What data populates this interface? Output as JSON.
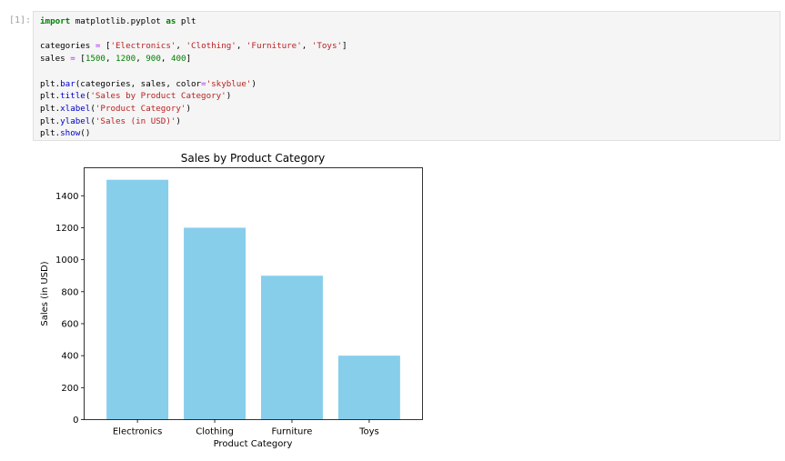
{
  "cell": {
    "prompt": "[1]:",
    "code_lines": [
      [
        {
          "t": "import",
          "c": "kw"
        },
        {
          "t": " matplotlib.pyplot ",
          "c": ""
        },
        {
          "t": "as",
          "c": "kw"
        },
        {
          "t": " plt",
          "c": ""
        }
      ],
      [],
      [
        {
          "t": "categories ",
          "c": ""
        },
        {
          "t": "=",
          "c": "op"
        },
        {
          "t": " [",
          "c": ""
        },
        {
          "t": "'Electronics'",
          "c": "str"
        },
        {
          "t": ", ",
          "c": ""
        },
        {
          "t": "'Clothing'",
          "c": "str"
        },
        {
          "t": ", ",
          "c": ""
        },
        {
          "t": "'Furniture'",
          "c": "str"
        },
        {
          "t": ", ",
          "c": ""
        },
        {
          "t": "'Toys'",
          "c": "str"
        },
        {
          "t": "]",
          "c": ""
        }
      ],
      [
        {
          "t": "sales ",
          "c": ""
        },
        {
          "t": "=",
          "c": "op"
        },
        {
          "t": " [",
          "c": ""
        },
        {
          "t": "1500",
          "c": "num"
        },
        {
          "t": ", ",
          "c": ""
        },
        {
          "t": "1200",
          "c": "num"
        },
        {
          "t": ", ",
          "c": ""
        },
        {
          "t": "900",
          "c": "num"
        },
        {
          "t": ", ",
          "c": ""
        },
        {
          "t": "400",
          "c": "num"
        },
        {
          "t": "]",
          "c": ""
        }
      ],
      [],
      [
        {
          "t": "plt.",
          "c": ""
        },
        {
          "t": "bar",
          "c": "fn"
        },
        {
          "t": "(categories, sales, color",
          "c": ""
        },
        {
          "t": "=",
          "c": "op"
        },
        {
          "t": "'skyblue'",
          "c": "str"
        },
        {
          "t": ")",
          "c": ""
        }
      ],
      [
        {
          "t": "plt.",
          "c": ""
        },
        {
          "t": "title",
          "c": "fn"
        },
        {
          "t": "(",
          "c": ""
        },
        {
          "t": "'Sales by Product Category'",
          "c": "str"
        },
        {
          "t": ")",
          "c": ""
        }
      ],
      [
        {
          "t": "plt.",
          "c": ""
        },
        {
          "t": "xlabel",
          "c": "fn"
        },
        {
          "t": "(",
          "c": ""
        },
        {
          "t": "'Product Category'",
          "c": "str"
        },
        {
          "t": ")",
          "c": ""
        }
      ],
      [
        {
          "t": "plt.",
          "c": ""
        },
        {
          "t": "ylabel",
          "c": "fn"
        },
        {
          "t": "(",
          "c": ""
        },
        {
          "t": "'Sales (in USD)'",
          "c": "str"
        },
        {
          "t": ")",
          "c": ""
        }
      ],
      [
        {
          "t": "plt.",
          "c": ""
        },
        {
          "t": "show",
          "c": "fn"
        },
        {
          "t": "()",
          "c": ""
        }
      ]
    ]
  },
  "chart_data": {
    "type": "bar",
    "title": "Sales by Product Category",
    "xlabel": "Product Category",
    "ylabel": "Sales (in USD)",
    "categories": [
      "Electronics",
      "Clothing",
      "Furniture",
      "Toys"
    ],
    "values": [
      1500,
      1200,
      900,
      400
    ],
    "ylim": [
      0,
      1575
    ],
    "yticks": [
      0,
      200,
      400,
      600,
      800,
      1000,
      1200,
      1400
    ],
    "bar_color": "#87ceeb",
    "grid": false,
    "legend": false
  }
}
